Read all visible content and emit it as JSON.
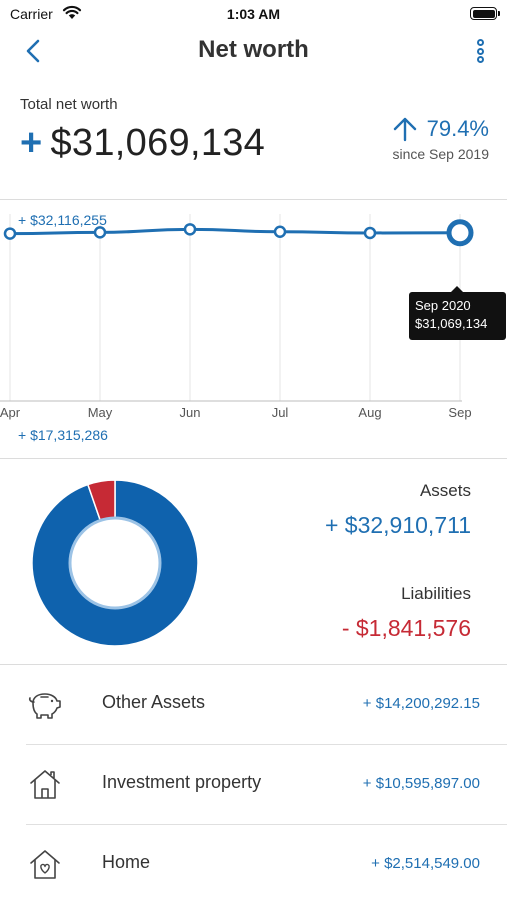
{
  "status_bar": {
    "carrier": "Carrier",
    "time": "1:03 AM"
  },
  "nav": {
    "title": "Net worth"
  },
  "summary": {
    "label": "Total net worth",
    "sign": "+",
    "value": "$31,069,134",
    "change_pct": "79.4%",
    "since": "since Sep 2019"
  },
  "chart": {
    "max_label": "+ $32,116,255",
    "min_label": "+ $17,315,286",
    "tooltip_date": "Sep 2020",
    "tooltip_value": "$31,069,134"
  },
  "chart_data": {
    "type": "line",
    "categories": [
      "Apr",
      "May",
      "Jun",
      "Jul",
      "Aug",
      "Sep"
    ],
    "values": [
      31000000,
      31100000,
      31350000,
      31150000,
      31050000,
      31069134
    ],
    "ylim": [
      17315286,
      32116255
    ],
    "series_color": "#1f6fb2",
    "grid": true
  },
  "breakdown": {
    "assets_label": "Assets",
    "assets_value": "+ $32,910,711",
    "liabilities_label": "Liabilities",
    "liabilities_value": "- $1,841,576",
    "assets_amount": 32910711,
    "liabilities_amount": 1841576,
    "assets_color": "#0f62ad",
    "liabilities_color": "#c62a35"
  },
  "accounts": [
    {
      "name": "Other Assets",
      "amount": "+ $14,200,292.15",
      "icon": "piggy-bank-icon"
    },
    {
      "name": "Investment property",
      "amount": "+ $10,595,897.00",
      "icon": "house-icon"
    },
    {
      "name": "Home",
      "amount": "+ $2,514,549.00",
      "icon": "home-heart-icon"
    }
  ]
}
